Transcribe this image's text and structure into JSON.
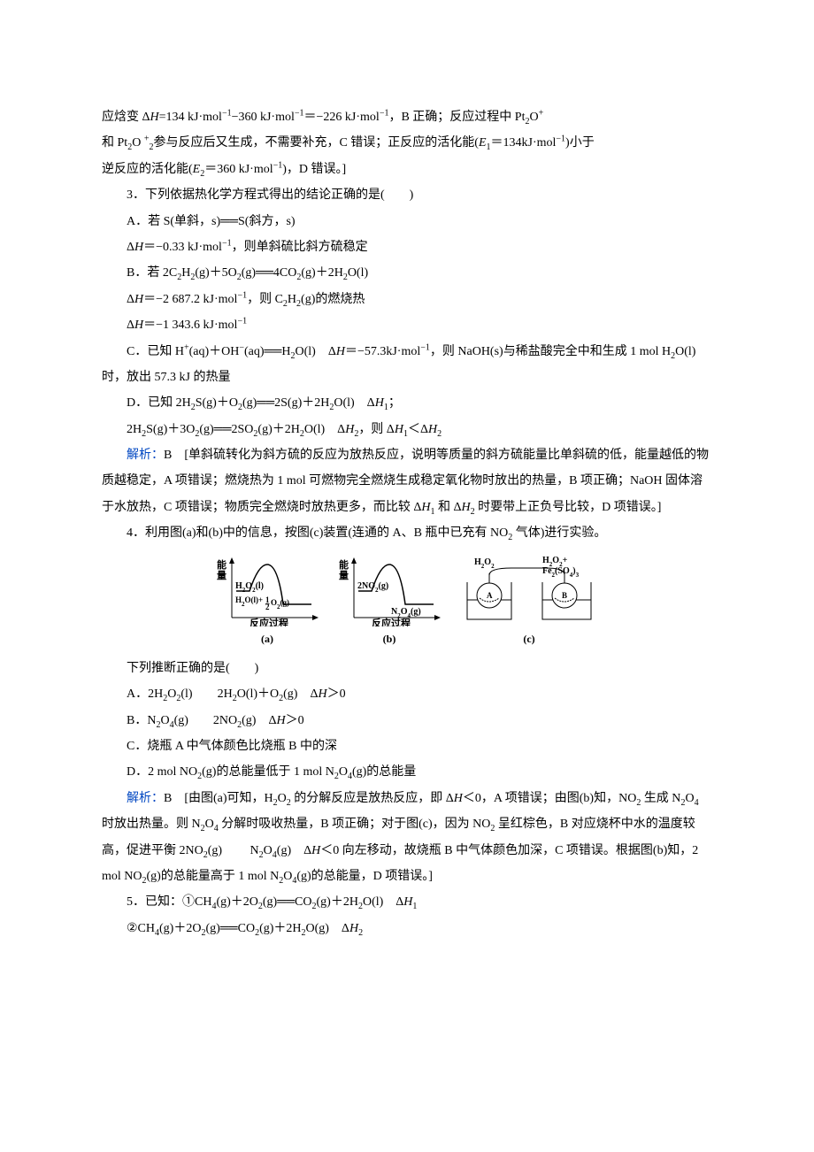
{
  "prelude": {
    "line1": "应焓变 Δ<span class='ital'>H</span>=134 kJ·mol<sup>−1</sup>−360 kJ·mol<sup>−1</sup>＝−226 kJ·mol<sup>−1</sup>，B 正确；反应过程中 Pt<sub>2</sub>O<sup>+</sup>",
    "line2": "和 Pt<sub>2</sub>O <sup>+</sup><sub>2</sub>参与反应后又生成，不需要补充，C 错误；正反应的活化能(<span class='ital'>E</span><sub>1</sub>＝134kJ·mol<sup>−1</sup>)小于",
    "line3": "逆反应的活化能(<span class='ital'>E</span><sub>2</sub>＝360 kJ·mol<sup>−1</sup>)，D 错误。]"
  },
  "q3": {
    "stem": "3．下列依据热化学方程式得出的结论正确的是(　　)",
    "A1": "A．若 S(单斜，s)══S(斜方，s)",
    "A2": "Δ<span class='ital'>H</span>＝−0.33 kJ·mol<sup>−1</sup>，则单斜硫比斜方硫稳定",
    "B1": "B．若 2C<sub>2</sub>H<sub>2</sub>(g)＋5O<sub>2</sub>(g)══4CO<sub>2</sub>(g)＋2H<sub>2</sub>O(l)",
    "B2": "Δ<span class='ital'>H</span>＝−2 687.2 kJ·mol<sup>−1</sup>，则 C<sub>2</sub>H<sub>2</sub>(g)的燃烧热",
    "B3": "Δ<span class='ital'>H</span>＝−1 343.6 kJ·mol<sup>−1</sup>",
    "C1": "C．已知 H<sup>+</sup>(aq)＋OH<sup>−</sup>(aq)══H<sub>2</sub>O(l)　Δ<span class='ital'>H</span>＝−57.3kJ·mol<sup>−1</sup>，则 NaOH(s)与稀盐酸完全中和生成 1 mol H<sub>2</sub>O(l)时，放出 57.3 kJ 的热量",
    "D1": "D．已知 2H<sub>2</sub>S(g)＋O<sub>2</sub>(g)══2S(g)＋2H<sub>2</sub>O(l)　Δ<span class='ital'>H</span><sub>1</sub>；",
    "D2": "2H<sub>2</sub>S(g)＋3O<sub>2</sub>(g)══2SO<sub>2</sub>(g)＋2H<sub>2</sub>O(l)　Δ<span class='ital'>H</span><sub>2</sub>，则 Δ<span class='ital'>H</span><sub>1</sub>＜Δ<span class='ital'>H</span><sub>2</sub>",
    "ans_label": "解析：",
    "ans": "B　[单斜硫转化为斜方硫的反应为放热反应，说明等质量的斜方硫能量比单斜硫的低，能量越低的物质越稳定，A 项错误；燃烧热为 1 mol 可燃物完全燃烧生成稳定氧化物时放出的热量，B 项正确；NaOH 固体溶于水放热，C 项错误；物质完全燃烧时放热更多，而比较 Δ<span class='ital'>H</span><sub>1</sub> 和 Δ<span class='ital'>H</span><sub>2</sub> 时要带上正负号比较，D 项错误。]"
  },
  "q4": {
    "stem": "4．利用图(a)和(b)中的信息，按图(c)装置(连通的 A、B 瓶中已充有 NO<sub>2</sub> 气体)进行实验。",
    "diagram_a": {
      "y_label": "能量",
      "x_label": "反应过程",
      "curve_color": "#000",
      "bg": "#fff",
      "top_label": "H<tspan baseline-shift='sub' font-size='8'>2</tspan>O<tspan baseline-shift='sub' font-size='8'>2</tspan>(l)",
      "bottom_label": "H<tspan baseline-shift='sub' font-size='8'>2</tspan>O(l)+½O<tspan baseline-shift='sub' font-size='8'>2</tspan>(g)",
      "caption": "(a)"
    },
    "diagram_b": {
      "y_label": "能量",
      "x_label": "反应过程",
      "curve_color": "#000",
      "bg": "#fff",
      "top_label": "2NO<tspan baseline-shift='sub' font-size='8'>2</tspan>(g)",
      "bottom_label": "N<tspan baseline-shift='sub' font-size='8'>2</tspan>O<tspan baseline-shift='sub' font-size='8'>4</tspan>(g)",
      "caption": "(b)"
    },
    "diagram_c": {
      "left_top": "H₂O₂",
      "right_top": "H₂O₂+\nFe₂(SO₄)₃",
      "caption": "(c)"
    },
    "stem2": "下列推断正确的是(　　)",
    "A": "A．2H<sub>2</sub>O<sub>2</sub>(l)　　2H<sub>2</sub>O(l)＋O<sub>2</sub>(g)　Δ<span class='ital'>H</span>＞0",
    "B": "B．N<sub>2</sub>O<sub>4</sub>(g)　　2NO<sub>2</sub>(g)　Δ<span class='ital'>H</span>＞0",
    "C": "C．烧瓶 A 中气体颜色比烧瓶 B 中的深",
    "D": "D．2 mol NO<sub>2</sub>(g)的总能量低于 1 mol N<sub>2</sub>O<sub>4</sub>(g)的总能量",
    "ans_label": "解析：",
    "ans": "B　[由图(a)可知，H<sub>2</sub>O<sub>2</sub> 的分解反应是放热反应，即 Δ<span class='ital'>H</span>＜0，A 项错误；由图(b)知，NO<sub>2</sub> 生成 N<sub>2</sub>O<sub>4</sub> 时放出热量。则 N<sub>2</sub>O<sub>4</sub> 分解时吸收热量，B 项正确；对于图(c)，因为 NO<sub>2</sub> 呈红棕色，B 对应烧杯中水的温度较高，促进平衡 2NO<sub>2</sub>(g) 　　N<sub>2</sub>O<sub>4</sub>(g)　Δ<span class='ital'>H</span>＜0 向左移动，故烧瓶 B 中气体颜色加深，C 项错误。根据图(b)知，2 mol NO<sub>2</sub>(g)的总能量高于 1 mol N<sub>2</sub>O<sub>4</sub>(g)的总能量，D 项错误。]"
  },
  "q5": {
    "stem": "5．已知：①CH<sub>4</sub>(g)＋2O<sub>2</sub>(g)══CO<sub>2</sub>(g)＋2H<sub>2</sub>O(l)　Δ<span class='ital'>H</span><sub>1</sub>",
    "line2": "②CH<sub>4</sub>(g)＋2O<sub>2</sub>(g)══CO<sub>2</sub>(g)＋2H<sub>2</sub>O(g)　Δ<span class='ital'>H</span><sub>2</sub>"
  }
}
